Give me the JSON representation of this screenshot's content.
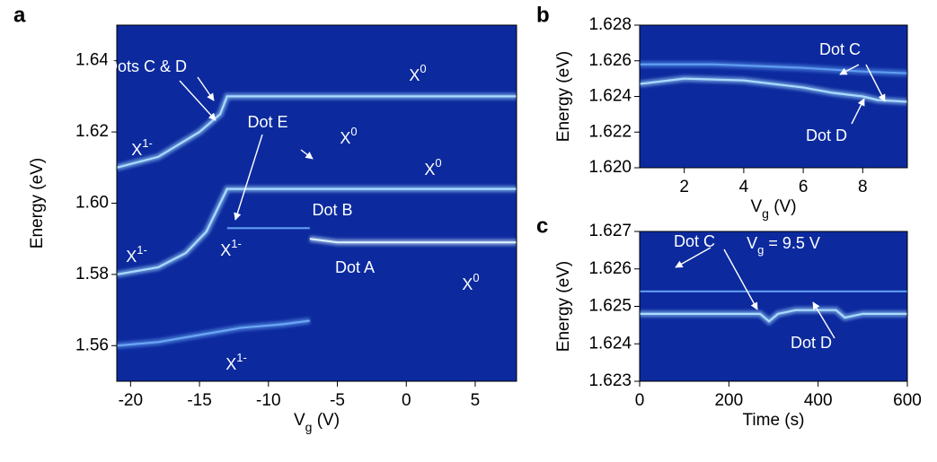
{
  "chart_data": [
    {
      "type": "line",
      "panel_label": "a",
      "x_label": [
        "V",
        "g",
        " (V)"
      ],
      "y_label": "Energy (eV)",
      "xlim": [
        -21,
        8
      ],
      "ylim": [
        1.55,
        1.65
      ],
      "xticks": [
        -20,
        -15,
        -10,
        -5,
        0,
        5
      ],
      "yticks": [
        1.56,
        1.58,
        {
          "value": 1.6,
          "label": "1.60"
        },
        1.62,
        1.64
      ],
      "background": "#0c2a9e",
      "series": [
        {
          "color": "#a8dcff",
          "x": [
            -21,
            -18,
            -15,
            -13.5,
            -13,
            -10,
            -5,
            0,
            5,
            8
          ],
          "values": [
            1.61,
            1.613,
            1.62,
            1.625,
            1.63,
            1.63,
            1.63,
            1.63,
            1.63,
            1.63
          ]
        },
        {
          "color": "#a8dcff",
          "x": [
            -21,
            -18,
            -16,
            -14.5,
            -13.5,
            -13,
            -10,
            -5,
            0,
            5,
            8
          ],
          "values": [
            1.58,
            1.582,
            1.586,
            1.592,
            1.6,
            1.604,
            1.604,
            1.604,
            1.604,
            1.604,
            1.604
          ]
        },
        {
          "color": "#d8f0ff",
          "x": [
            -7,
            -5,
            0,
            5,
            8
          ],
          "values": [
            1.59,
            1.589,
            1.589,
            1.589,
            1.589
          ]
        },
        {
          "color": "#5f9cf0",
          "x": [
            -13,
            -10,
            -7
          ],
          "values": [
            1.593,
            1.593,
            1.593
          ]
        },
        {
          "color": "#6aa6f5",
          "x": [
            -21,
            -18,
            -15,
            -12,
            -9,
            -7
          ],
          "values": [
            1.56,
            1.561,
            1.563,
            1.565,
            1.566,
            1.567
          ]
        }
      ],
      "annotations": [
        [
          "Dots C & D"
        ],
        [
          "X",
          "0"
        ],
        [
          "X",
          "1-"
        ],
        [
          "Dot E"
        ],
        [
          "X",
          "0"
        ],
        [
          "X",
          "0"
        ],
        [
          "Dot B"
        ],
        [
          "X",
          "1-"
        ],
        [
          "X",
          "1-"
        ],
        [
          "Dot A"
        ],
        [
          "X",
          "0"
        ],
        [
          "X",
          "1-"
        ]
      ]
    },
    {
      "type": "line",
      "panel_label": "b",
      "x_label": [
        "V",
        "g",
        " (V)"
      ],
      "y_label": "Energy (eV)",
      "xlim": [
        0.5,
        9.5
      ],
      "ylim": [
        1.62,
        1.628
      ],
      "xticks": [
        2,
        4,
        6,
        8
      ],
      "yticks": [
        {
          "value": 1.62,
          "label": "1.620"
        },
        1.622,
        1.624,
        1.626,
        1.628
      ],
      "background": "#0c2a9e",
      "series": [
        {
          "color": "#a8dcff",
          "x": [
            0.5,
            2,
            4,
            6,
            7,
            8,
            8.5,
            9.5
          ],
          "values": [
            1.6247,
            1.625,
            1.6249,
            1.6245,
            1.6242,
            1.624,
            1.6238,
            1.6237
          ]
        },
        {
          "color": "#5f9cf0",
          "x": [
            0.5,
            3,
            6,
            8,
            9.5
          ],
          "values": [
            1.6258,
            1.6258,
            1.6256,
            1.6254,
            1.6253
          ]
        }
      ],
      "annotations": [
        [
          "Dot C"
        ],
        [
          "Dot D"
        ]
      ]
    },
    {
      "type": "line",
      "panel_label": "c",
      "x_label": [
        "Time (s)"
      ],
      "y_label": "Energy (eV)",
      "xlim": [
        0,
        600
      ],
      "ylim": [
        1.623,
        1.627
      ],
      "xticks": [
        0,
        200,
        400,
        600
      ],
      "yticks": [
        1.623,
        1.624,
        1.625,
        1.626,
        1.627
      ],
      "background": "#0c2a9e",
      "series": [
        {
          "color": "#a8dcff",
          "x": [
            0,
            100,
            200,
            270,
            290,
            310,
            350,
            400,
            440,
            460,
            500,
            560,
            600
          ],
          "values": [
            1.6248,
            1.6248,
            1.6248,
            1.6248,
            1.6246,
            1.6248,
            1.6249,
            1.6249,
            1.6249,
            1.6247,
            1.6248,
            1.6248,
            1.6248
          ]
        },
        {
          "color": "#5f9cf0",
          "x": [
            0,
            200,
            400,
            600
          ],
          "values": [
            1.6254,
            1.6254,
            1.6254,
            1.6254
          ]
        }
      ],
      "annotations": [
        [
          "Dot C"
        ],
        [
          "V",
          "g",
          " = 9.5 V"
        ],
        [
          "Dot D"
        ]
      ]
    }
  ]
}
